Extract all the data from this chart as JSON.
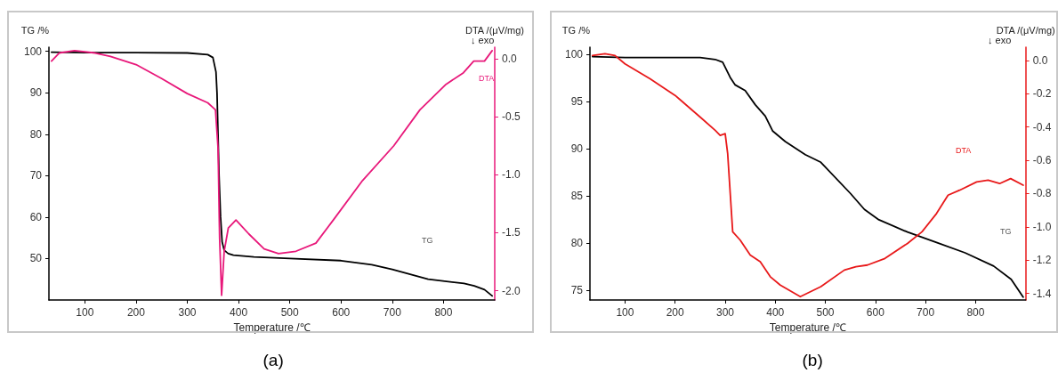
{
  "chart_data": [
    {
      "type": "line",
      "title": "(a)",
      "xlabel": "Temperature /℃",
      "ylabel": "TG /%",
      "y2label": "DTA /(μV/mg)",
      "xlim": [
        30,
        900
      ],
      "xticks": [
        100,
        200,
        300,
        400,
        500,
        600,
        700,
        800
      ],
      "ylim": [
        40,
        101
      ],
      "yticks": [
        50,
        60,
        70,
        80,
        90,
        100
      ],
      "y2lim": [
        -2.08,
        0.1
      ],
      "y2ticks": [
        {
          "value": -2,
          "label": "-2.0"
        },
        {
          "value": -1.5,
          "label": "-1.5"
        },
        {
          "value": -1,
          "label": "-1.0"
        },
        {
          "value": -0.5,
          "label": "-0.5"
        },
        {
          "value": 0,
          "label": "0.0"
        }
      ],
      "grid": false,
      "marker": "none",
      "line_style": "solid",
      "series": [
        {
          "color": "#000000",
          "x": [
            35,
            100,
            200,
            300,
            340,
            350,
            356,
            358,
            360,
            362,
            365,
            368,
            372,
            380,
            390,
            430,
            500,
            600,
            660,
            700,
            770,
            840,
            860,
            880,
            895
          ],
          "values": [
            99.8,
            99.7,
            99.7,
            99.6,
            99.2,
            98.5,
            95,
            90,
            80,
            70,
            60,
            54,
            52,
            51.2,
            50.8,
            50.4,
            50,
            49.5,
            48.5,
            47.4,
            45,
            44,
            43.4,
            42.5,
            41
          ]
        },
        {
          "color": "#e8187a",
          "axis": "y2",
          "x": [
            35,
            50,
            80,
            120,
            150,
            200,
            250,
            300,
            340,
            355,
            360,
            363,
            367,
            372,
            380,
            395,
            420,
            450,
            478,
            512,
            551,
            585,
            642,
            703,
            754,
            805,
            839,
            859,
            880,
            895
          ],
          "values": [
            -0.02,
            0.05,
            0.07,
            0.05,
            0.02,
            -0.05,
            -0.17,
            -0.3,
            -0.38,
            -0.44,
            -0.77,
            -1.54,
            -2.04,
            -1.66,
            -1.46,
            -1.39,
            -1.51,
            -1.64,
            -1.68,
            -1.66,
            -1.59,
            -1.39,
            -1.05,
            -0.75,
            -0.44,
            -0.22,
            -0.12,
            -0.02,
            -0.02,
            0.07
          ]
        }
      ],
      "annotations": [
        "TG",
        "DTA",
        "↓ exo"
      ]
    },
    {
      "type": "line",
      "title": "(b)",
      "xlabel": "Temperature /℃",
      "ylabel": "TG /%",
      "y2label": "DTA /(μV/mg)",
      "xlim": [
        30,
        900
      ],
      "xticks": [
        100,
        200,
        300,
        400,
        500,
        600,
        700,
        800
      ],
      "ylim": [
        74,
        100.8
      ],
      "yticks": [
        75,
        80,
        85,
        90,
        95,
        100
      ],
      "y2lim": [
        -1.44,
        0.08
      ],
      "y2ticks": [
        {
          "value": -1.4,
          "label": "-1.4"
        },
        {
          "value": -1.2,
          "label": "-1.2"
        },
        {
          "value": -1,
          "label": "-1.0"
        },
        {
          "value": -0.8,
          "label": "-0.8"
        },
        {
          "value": -0.6,
          "label": "-0.6"
        },
        {
          "value": -0.4,
          "label": "-0.4"
        },
        {
          "value": -0.2,
          "label": "-0.2"
        },
        {
          "value": 0,
          "label": "0.0"
        }
      ],
      "grid": false,
      "marker": "none",
      "line_style": "solid",
      "series": [
        {
          "color": "#000000",
          "x": [
            35,
            100,
            250,
            280,
            295,
            310,
            320,
            340,
            360,
            380,
            395,
            420,
            460,
            491,
            550,
            578,
            607,
            664,
            722,
            779,
            836,
            871,
            895
          ],
          "values": [
            99.8,
            99.7,
            99.7,
            99.5,
            99.2,
            97.6,
            96.8,
            96.2,
            94.7,
            93.5,
            91.9,
            90.8,
            89.4,
            88.6,
            85.3,
            83.6,
            82.5,
            81.2,
            80.1,
            79,
            77.6,
            76.2,
            74.3
          ]
        },
        {
          "color": "#e8191a",
          "axis": "y2",
          "x": [
            35,
            60,
            80,
            100,
            150,
            200,
            250,
            280,
            290,
            300,
            305,
            315,
            330,
            350,
            370,
            390,
            410,
            450,
            491,
            538,
            561,
            584,
            619,
            664,
            693,
            722,
            745,
            768,
            802,
            825,
            848,
            870,
            895
          ],
          "values": [
            0.03,
            0.04,
            0.03,
            -0.02,
            -0.11,
            -0.21,
            -0.34,
            -0.42,
            -0.45,
            -0.44,
            -0.56,
            -1.03,
            -1.08,
            -1.17,
            -1.21,
            -1.3,
            -1.35,
            -1.42,
            -1.36,
            -1.26,
            -1.24,
            -1.23,
            -1.19,
            -1.1,
            -1.03,
            -0.92,
            -0.81,
            -0.78,
            -0.73,
            -0.72,
            -0.74,
            -0.71,
            -0.75
          ]
        }
      ],
      "annotations": [
        "TG",
        "DTA",
        "↓ exo"
      ]
    }
  ]
}
